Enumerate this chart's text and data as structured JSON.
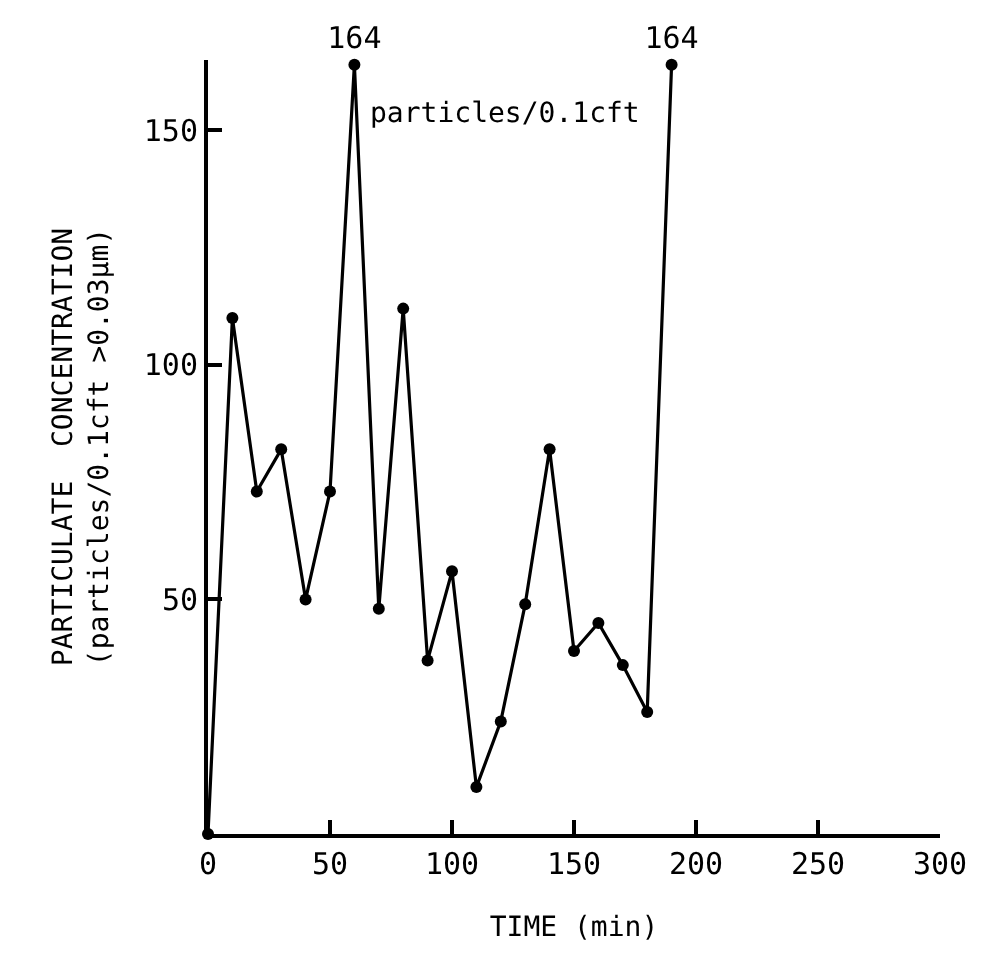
{
  "chart_data": {
    "type": "line",
    "x": [
      0,
      10,
      20,
      30,
      40,
      50,
      60,
      70,
      80,
      90,
      100,
      110,
      120,
      130,
      140,
      150,
      160,
      170,
      180,
      190
    ],
    "series": [
      {
        "color": "#000000",
        "values": [
          0,
          110,
          73,
          82,
          50,
          73,
          164,
          48,
          112,
          37,
          56,
          10,
          24,
          49,
          82,
          39,
          45,
          36,
          26,
          164
        ],
        "value_labels": [
          null,
          null,
          null,
          null,
          null,
          null,
          "164",
          null,
          null,
          null,
          null,
          null,
          null,
          null,
          null,
          null,
          null,
          null,
          null,
          "164"
        ]
      }
    ],
    "xlim": [
      0,
      300
    ],
    "ylim": [
      0,
      165
    ],
    "xticks": [
      0,
      50,
      100,
      150,
      200,
      250,
      300
    ],
    "yticks": [
      50,
      100,
      150
    ],
    "xlabel": "TIME (min)",
    "ylabel": "PARTICULATE  CONCENTRATION\n(particles/0.1cft >0.03μm)",
    "annotations": [
      "particles/0.1cft"
    ],
    "marker": "circle",
    "line_style": "solid"
  }
}
